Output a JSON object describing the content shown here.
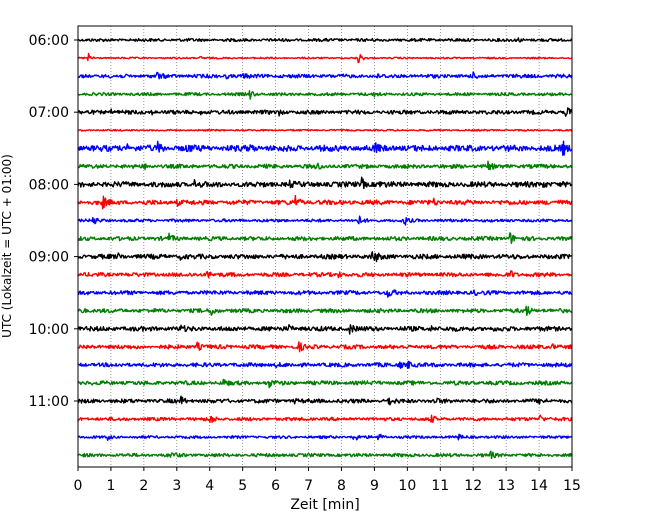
{
  "chart_data": {
    "type": "line",
    "title": "",
    "xlabel": "Zeit  [min]",
    "ylabel": "UTC (Lokalzeit = UTC + 01:00)",
    "xlim": [
      0,
      15
    ],
    "x_ticks": [
      "0",
      "1",
      "2",
      "3",
      "4",
      "5",
      "6",
      "7",
      "8",
      "9",
      "10",
      "11",
      "12",
      "13",
      "14",
      "15"
    ],
    "y_ticks": [
      "06:00",
      "07:00",
      "08:00",
      "09:00",
      "10:00",
      "11:00"
    ],
    "grid": "vertical-dotted",
    "row_interval_min": 15,
    "row_colors": [
      "#000000",
      "#ff0000",
      "#0000ff",
      "#008000"
    ],
    "series": [
      {
        "start": "06:00",
        "noise": 0.22,
        "events": [
          [
            13.3,
            0.5
          ]
        ]
      },
      {
        "start": "06:15",
        "noise": 0.12,
        "events": [
          [
            0.3,
            0.7
          ],
          [
            3.7,
            0.3
          ],
          [
            8.5,
            1.0
          ]
        ]
      },
      {
        "start": "06:30",
        "noise": 0.28,
        "events": [
          [
            2.4,
            0.5
          ],
          [
            4.5,
            0.3
          ],
          [
            5.0,
            0.3
          ],
          [
            9.0,
            0.3
          ],
          [
            12.0,
            0.3
          ]
        ]
      },
      {
        "start": "06:45",
        "noise": 0.22,
        "events": [
          [
            5.2,
            0.8
          ],
          [
            9.0,
            0.4
          ]
        ]
      },
      {
        "start": "07:00",
        "noise": 0.3,
        "events": [
          [
            1.0,
            0.3
          ],
          [
            2.2,
            0.3
          ],
          [
            3.7,
            0.3
          ],
          [
            6.1,
            0.3
          ],
          [
            14.8,
            1.1
          ]
        ]
      },
      {
        "start": "07:15",
        "noise": 0.12,
        "events": []
      },
      {
        "start": "07:30",
        "noise": 0.45,
        "events": [
          [
            1.5,
            0.4
          ],
          [
            2.4,
            0.9
          ],
          [
            3.3,
            0.5
          ],
          [
            5.2,
            0.5
          ],
          [
            9.0,
            0.7
          ],
          [
            14.7,
            1.1
          ]
        ]
      },
      {
        "start": "07:45",
        "noise": 0.3,
        "events": [
          [
            2.0,
            0.3
          ],
          [
            7.2,
            0.6
          ],
          [
            12.4,
            0.8
          ]
        ]
      },
      {
        "start": "08:00",
        "noise": 0.4,
        "events": [
          [
            3.5,
            0.7
          ],
          [
            6.4,
            0.4
          ],
          [
            8.6,
            0.9
          ],
          [
            9.1,
            0.5
          ],
          [
            14.1,
            0.6
          ]
        ]
      },
      {
        "start": "08:15",
        "noise": 0.35,
        "events": [
          [
            0.75,
            0.8
          ],
          [
            3.0,
            0.4
          ],
          [
            6.6,
            0.9
          ],
          [
            10.8,
            0.4
          ]
        ]
      },
      {
        "start": "08:30",
        "noise": 0.22,
        "events": [
          [
            0.45,
            0.7
          ],
          [
            8.5,
            0.8
          ],
          [
            9.9,
            0.7
          ]
        ]
      },
      {
        "start": "08:45",
        "noise": 0.3,
        "events": [
          [
            2.75,
            0.6
          ],
          [
            13.1,
            1.1
          ]
        ]
      },
      {
        "start": "09:00",
        "noise": 0.35,
        "events": [
          [
            1.2,
            0.3
          ],
          [
            3.1,
            0.3
          ],
          [
            8.9,
            0.7
          ],
          [
            9.0,
            0.5
          ]
        ]
      },
      {
        "start": "09:15",
        "noise": 0.3,
        "events": [
          [
            3.9,
            0.8
          ],
          [
            7.9,
            0.4
          ],
          [
            13.1,
            0.8
          ]
        ]
      },
      {
        "start": "09:30",
        "noise": 0.3,
        "events": [
          [
            9.4,
            0.8
          ],
          [
            12.0,
            0.3
          ]
        ]
      },
      {
        "start": "09:45",
        "noise": 0.3,
        "events": [
          [
            0.1,
            0.4
          ],
          [
            4.05,
            0.7
          ],
          [
            13.6,
            0.9
          ]
        ]
      },
      {
        "start": "10:00",
        "noise": 0.35,
        "events": [
          [
            3.1,
            0.4
          ],
          [
            6.4,
            0.4
          ],
          [
            8.25,
            0.7
          ],
          [
            10.7,
            0.4
          ]
        ]
      },
      {
        "start": "10:15",
        "noise": 0.3,
        "events": [
          [
            3.6,
            0.7
          ],
          [
            6.7,
            0.7
          ],
          [
            14.35,
            0.7
          ]
        ]
      },
      {
        "start": "10:30",
        "noise": 0.3,
        "events": [
          [
            6.0,
            0.3
          ],
          [
            9.75,
            0.6
          ],
          [
            10.0,
            0.6
          ]
        ]
      },
      {
        "start": "10:45",
        "noise": 0.3,
        "events": [
          [
            4.4,
            0.5
          ],
          [
            5.8,
            0.5
          ]
        ]
      },
      {
        "start": "11:00",
        "noise": 0.3,
        "events": [
          [
            3.1,
            0.7
          ],
          [
            6.5,
            0.4
          ],
          [
            9.4,
            0.7
          ],
          [
            10.8,
            0.5
          ],
          [
            14.0,
            0.6
          ]
        ]
      },
      {
        "start": "11:15",
        "noise": 0.25,
        "events": [
          [
            4.0,
            0.8
          ],
          [
            10.7,
            0.6
          ],
          [
            14.0,
            0.8
          ]
        ]
      },
      {
        "start": "11:30",
        "noise": 0.2,
        "events": [
          [
            0.9,
            0.3
          ],
          [
            8.35,
            0.9
          ],
          [
            9.1,
            0.6
          ],
          [
            11.5,
            0.5
          ]
        ]
      },
      {
        "start": "11:45",
        "noise": 0.25,
        "events": [
          [
            2.8,
            0.5
          ],
          [
            12.5,
            0.6
          ]
        ]
      }
    ]
  }
}
